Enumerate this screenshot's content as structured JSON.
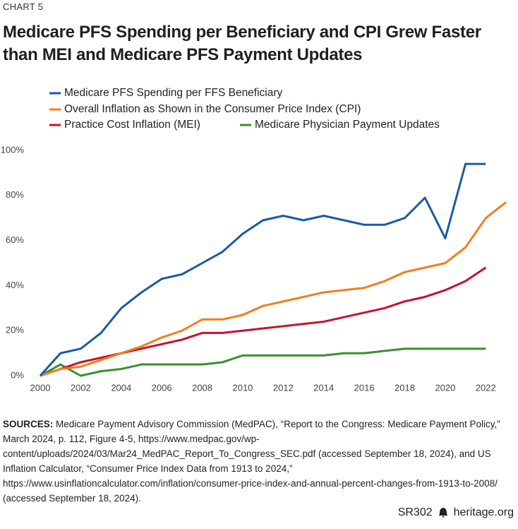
{
  "chart_data": {
    "type": "line",
    "label": "CHART 5",
    "title": "Medicare PFS Spending per Beneficiary and CPI Grew Faster than MEI and Medicare PFS Payment Updates",
    "x": [
      2000,
      2001,
      2002,
      2003,
      2004,
      2005,
      2006,
      2007,
      2008,
      2009,
      2010,
      2011,
      2012,
      2013,
      2014,
      2015,
      2016,
      2017,
      2018,
      2019,
      2020,
      2021,
      2022,
      2023
    ],
    "series": [
      {
        "name": "Medicare PFS Spending per FFS Beneficiary",
        "color": "#1a5ba6",
        "values": [
          0,
          10,
          12,
          19,
          30,
          37,
          43,
          45,
          50,
          55,
          63,
          69,
          71,
          69,
          71,
          69,
          67,
          67,
          70,
          79,
          61,
          94,
          94,
          null
        ]
      },
      {
        "name": "Overall Inflation as Shown in the Consumer Price Index (CPI)",
        "color": "#f07f1c",
        "values": [
          0,
          3,
          4,
          7,
          10,
          13,
          17,
          20,
          25,
          25,
          27,
          31,
          33,
          35,
          37,
          38,
          39,
          42,
          46,
          48,
          50,
          57,
          70,
          77
        ]
      },
      {
        "name": "Practice Cost Inflation (MEI)",
        "color": "#c8102e",
        "values": [
          0,
          3,
          6,
          8,
          10,
          12,
          14,
          16,
          19,
          19,
          20,
          21,
          22,
          23,
          24,
          26,
          28,
          30,
          33,
          35,
          38,
          42,
          48,
          null
        ]
      },
      {
        "name": "Medicare Physician Payment Updates",
        "color": "#3a8f2f",
        "values": [
          0,
          5,
          0,
          2,
          3,
          5,
          5,
          5,
          5,
          6,
          9,
          9,
          9,
          9,
          9,
          10,
          10,
          11,
          12,
          12,
          12,
          12,
          12,
          null
        ]
      }
    ],
    "xlim": [
      2000,
      2023
    ],
    "xticks": [
      2000,
      2002,
      2004,
      2006,
      2008,
      2010,
      2012,
      2014,
      2016,
      2018,
      2020,
      2022
    ],
    "ylim": [
      0,
      100
    ],
    "yticks": [
      {
        "value": 0,
        "label": "0%"
      },
      {
        "value": 20,
        "label": "20%"
      },
      {
        "value": 40,
        "label": "40%"
      },
      {
        "value": 60,
        "label": "60%"
      },
      {
        "value": 80,
        "label": "80%"
      },
      {
        "value": 100,
        "label": "100%"
      }
    ],
    "grid": false
  },
  "sources": {
    "label": "SOURCES:",
    "text": "Medicare Payment Advisory Commission (MedPAC), “Report to the Congress: Medicare Payment Policy,” March 2024, p. 112, Figure 4-5, https://www.medpac.gov/wp-content/uploads/2024/03/Mar24_MedPAC_Report_To_Congress_SEC.pdf (accessed September 18, 2024), and US Inflation Calculator, “Consumer Price Index Data from 1913 to 2024,” https://www.usinflationcalculator.com/inflation/consumer-price-index-and-annual-percent-changes-from-1913-to-2008/ (accessed September 18, 2024)."
  },
  "footer": {
    "code": "SR302",
    "site": "heritage.org"
  }
}
